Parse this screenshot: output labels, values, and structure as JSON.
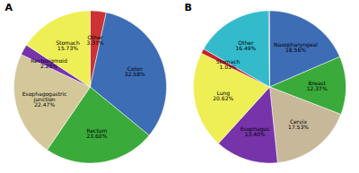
{
  "chart_data": [
    {
      "type": "pie",
      "title": "A",
      "categories": [
        "Other",
        "Colon",
        "Rectum",
        "Esophagogastric\njunction",
        "Rectosigmoid",
        "Stomach"
      ],
      "values": [
        3.37,
        32.58,
        23.6,
        22.47,
        2.25,
        15.73
      ],
      "value_labels": [
        "3.37%",
        "32.58%",
        "23.60%",
        "22.47%",
        "2.25%",
        "15.73%"
      ],
      "colors": [
        "#cc3333",
        "#3d6db5",
        "#3aaa3a",
        "#d4c89a",
        "#7733aa",
        "#eeee55"
      ],
      "data_labels": true
    },
    {
      "type": "pie",
      "title": "B",
      "categories": [
        "Nasopharyngeal",
        "Breast",
        "Cervix",
        "Esophagus",
        "Lung",
        "Stomach",
        "Other",
        null
      ],
      "values": [
        18.56,
        12.37,
        17.53,
        13.4,
        20.62,
        1.03,
        16.49,
        0.22
      ],
      "value_labels": [
        "18.56%",
        "12.37%",
        "17.53%",
        "13.40%",
        "20.62%",
        "1.03%",
        "16.49%",
        null
      ],
      "colors": [
        "#3d6db5",
        "#3aaa3a",
        "#c8b89a",
        "#7733aa",
        "#eeee55",
        "#cc2222",
        "#33bbcc",
        "#3366bb"
      ],
      "data_labels": true
    }
  ]
}
